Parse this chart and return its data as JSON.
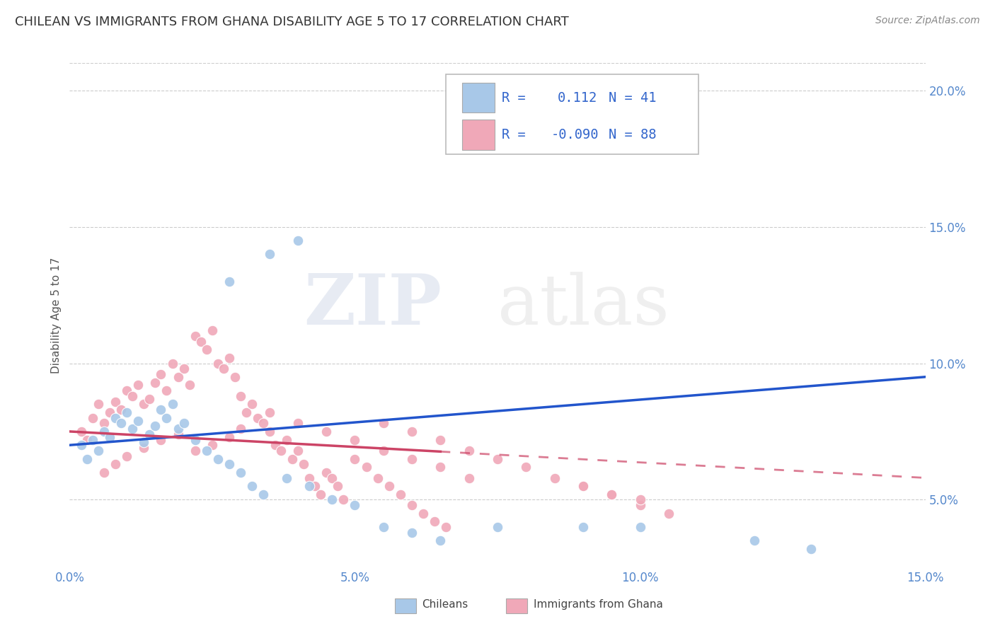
{
  "title": "CHILEAN VS IMMIGRANTS FROM GHANA DISABILITY AGE 5 TO 17 CORRELATION CHART",
  "source": "Source: ZipAtlas.com",
  "ylabel": "Disability Age 5 to 17",
  "xlim": [
    0.0,
    0.15
  ],
  "ylim": [
    0.025,
    0.21
  ],
  "xtick_labels": [
    "0.0%",
    "5.0%",
    "10.0%",
    "15.0%"
  ],
  "xtick_vals": [
    0.0,
    0.05,
    0.1,
    0.15
  ],
  "ytick_labels": [
    "5.0%",
    "10.0%",
    "15.0%",
    "20.0%"
  ],
  "ytick_vals": [
    0.05,
    0.1,
    0.15,
    0.2
  ],
  "watermark_zip": "ZIP",
  "watermark_atlas": "atlas",
  "chilean_color": "#a8c8e8",
  "ghana_color": "#f0a8b8",
  "line_blue_color": "#2255cc",
  "line_pink_color": "#cc4466",
  "title_color": "#333333",
  "title_fontsize": 13,
  "axis_label_color": "#555555",
  "tick_label_color": "#5588cc",
  "grid_color": "#cccccc",
  "background_color": "#ffffff",
  "legend_r1": "R =",
  "legend_v1": "0.112",
  "legend_n1": "N = 41",
  "legend_r2": "R =",
  "legend_v2": "-0.090",
  "legend_n2": "N = 88",
  "chileans_x": [
    0.002,
    0.003,
    0.004,
    0.005,
    0.006,
    0.007,
    0.008,
    0.009,
    0.01,
    0.011,
    0.012,
    0.013,
    0.014,
    0.015,
    0.016,
    0.017,
    0.018,
    0.019,
    0.02,
    0.022,
    0.024,
    0.026,
    0.028,
    0.03,
    0.032,
    0.034,
    0.038,
    0.042,
    0.046,
    0.05,
    0.055,
    0.06,
    0.065,
    0.075,
    0.09,
    0.1,
    0.12,
    0.13,
    0.035,
    0.04,
    0.028
  ],
  "chileans_y": [
    0.07,
    0.065,
    0.072,
    0.068,
    0.075,
    0.073,
    0.08,
    0.078,
    0.082,
    0.076,
    0.079,
    0.071,
    0.074,
    0.077,
    0.083,
    0.08,
    0.085,
    0.076,
    0.078,
    0.072,
    0.068,
    0.065,
    0.063,
    0.06,
    0.055,
    0.052,
    0.058,
    0.055,
    0.05,
    0.048,
    0.04,
    0.038,
    0.035,
    0.04,
    0.04,
    0.04,
    0.035,
    0.032,
    0.14,
    0.145,
    0.13
  ],
  "ghana_x": [
    0.002,
    0.003,
    0.004,
    0.005,
    0.006,
    0.007,
    0.008,
    0.009,
    0.01,
    0.011,
    0.012,
    0.013,
    0.014,
    0.015,
    0.016,
    0.017,
    0.018,
    0.019,
    0.02,
    0.021,
    0.022,
    0.023,
    0.024,
    0.025,
    0.026,
    0.027,
    0.028,
    0.029,
    0.03,
    0.031,
    0.032,
    0.033,
    0.034,
    0.035,
    0.036,
    0.037,
    0.038,
    0.039,
    0.04,
    0.041,
    0.042,
    0.043,
    0.044,
    0.045,
    0.046,
    0.047,
    0.048,
    0.05,
    0.052,
    0.054,
    0.056,
    0.058,
    0.06,
    0.062,
    0.064,
    0.066,
    0.03,
    0.028,
    0.025,
    0.022,
    0.019,
    0.016,
    0.013,
    0.01,
    0.008,
    0.006,
    0.035,
    0.04,
    0.045,
    0.05,
    0.055,
    0.06,
    0.065,
    0.07,
    0.09,
    0.095,
    0.1,
    0.105,
    0.055,
    0.06,
    0.065,
    0.07,
    0.075,
    0.08,
    0.085,
    0.09,
    0.095,
    0.1
  ],
  "ghana_y": [
    0.075,
    0.072,
    0.08,
    0.085,
    0.078,
    0.082,
    0.086,
    0.083,
    0.09,
    0.088,
    0.092,
    0.085,
    0.087,
    0.093,
    0.096,
    0.09,
    0.1,
    0.095,
    0.098,
    0.092,
    0.11,
    0.108,
    0.105,
    0.112,
    0.1,
    0.098,
    0.102,
    0.095,
    0.088,
    0.082,
    0.085,
    0.08,
    0.078,
    0.075,
    0.07,
    0.068,
    0.072,
    0.065,
    0.068,
    0.063,
    0.058,
    0.055,
    0.052,
    0.06,
    0.058,
    0.055,
    0.05,
    0.065,
    0.062,
    0.058,
    0.055,
    0.052,
    0.048,
    0.045,
    0.042,
    0.04,
    0.076,
    0.073,
    0.07,
    0.068,
    0.074,
    0.072,
    0.069,
    0.066,
    0.063,
    0.06,
    0.082,
    0.078,
    0.075,
    0.072,
    0.068,
    0.065,
    0.062,
    0.058,
    0.055,
    0.052,
    0.048,
    0.045,
    0.078,
    0.075,
    0.072,
    0.068,
    0.065,
    0.062,
    0.058,
    0.055,
    0.052,
    0.05
  ]
}
